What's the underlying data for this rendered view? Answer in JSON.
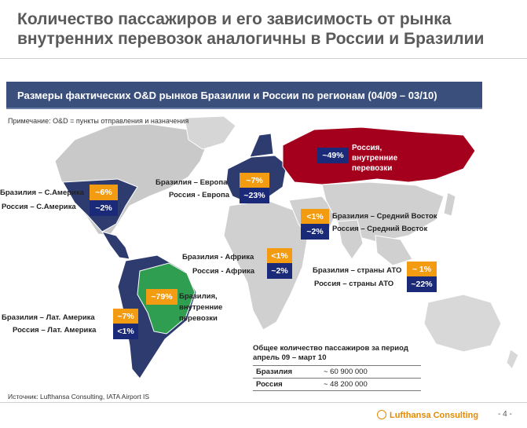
{
  "title": "Количество пассажиров и его зависимость от рынка внутренних перевозок аналогичны в России и Бразилии",
  "subtitle": "Размеры фактических O&D рынков Бразилии и России по регионам (04/09 – 03/10)",
  "note": "Примечание: O&D = пункты отправления и назначения",
  "regions": {
    "north_america": {
      "brazil_label": "Бразилия – С.Америка",
      "brazil_value": "~6%",
      "russia_label": "Россия – С.Америка",
      "russia_value": "~2%"
    },
    "europe": {
      "brazil_label": "Бразилия – Европа",
      "brazil_value": "~7%",
      "russia_label": "Россия - Европа",
      "russia_value": "~23%"
    },
    "russia_domestic": {
      "value": "~49%",
      "label_1": "Россия,",
      "label_2": "внутренние",
      "label_3": "перевозки"
    },
    "middle_east": {
      "brazil_label": "Бразилия – Средний Восток",
      "brazil_value": "<1%",
      "russia_label": "Россия – Средний Восток",
      "russia_value": "~2%"
    },
    "africa": {
      "brazil_label": "Бразилия - Африка",
      "brazil_value": "<1%",
      "russia_label": "Россия - Африка",
      "russia_value": "~2%"
    },
    "asia_pacific": {
      "brazil_label": "Бразилия – страны АТО",
      "brazil_value": "~ 1%",
      "russia_label": "Россия – страны АТО",
      "russia_value": "~22%"
    },
    "latin_america": {
      "brazil_label": "Бразилия – Лат. Америка",
      "brazil_value": "~7%",
      "russia_label": "Россия – Лат. Америка",
      "russia_value": "<1%"
    },
    "brazil_domestic": {
      "value": "~79%",
      "label_1": "Бразилия,",
      "label_2": "внутренние",
      "label_3": "перевозки"
    }
  },
  "totals": {
    "heading": "Общее количество пассажиров за период апрель 09 – март 10",
    "rows": [
      {
        "country": "Бразилия",
        "value": "~ 60 900 000"
      },
      {
        "country": "Россия",
        "value": "~ 48 200 000"
      }
    ]
  },
  "source": "Источник: Lufthansa Consulting, IATA Airport IS",
  "logo_text": "Lufthansa Consulting",
  "page_number": "- 4 -",
  "colors": {
    "brazil": "#f39c12",
    "russia": "#1a2a78",
    "russia_map": "#a4001d",
    "brazil_map": "#2f9e50",
    "header_bar": "#3b4f7d"
  }
}
